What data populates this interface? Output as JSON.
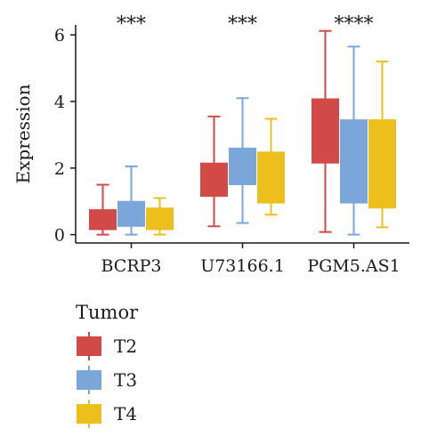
{
  "chart_data": {
    "type": "boxplot",
    "ylabel": "Expression",
    "ylim": [
      -0.25,
      6.3
    ],
    "yticks": [
      0,
      2,
      4,
      6
    ],
    "categories": [
      "BCRP3",
      "U73166.1",
      "PGM5.AS1"
    ],
    "significance": [
      "***",
      "***",
      "****"
    ],
    "legend_title": "Tumor",
    "grid": false,
    "legend_position": "bottom-left",
    "series": [
      {
        "name": "T2",
        "color": "#d24a48",
        "boxes": [
          {
            "min": 0.0,
            "q1": 0.15,
            "median": 0.4,
            "q3": 0.75,
            "max": 1.5
          },
          {
            "min": 0.25,
            "q1": 1.15,
            "median": 1.5,
            "q3": 2.15,
            "max": 3.55
          },
          {
            "min": 0.08,
            "q1": 2.15,
            "median": 3.1,
            "q3": 4.08,
            "max": 6.12
          }
        ]
      },
      {
        "name": "T3",
        "color": "#7ba6d9",
        "boxes": [
          {
            "min": 0.0,
            "q1": 0.25,
            "median": 0.55,
            "q3": 1.0,
            "max": 2.05
          },
          {
            "min": 0.35,
            "q1": 1.5,
            "median": 2.0,
            "q3": 2.6,
            "max": 4.1
          },
          {
            "min": 0.0,
            "q1": 0.95,
            "median": 2.2,
            "q3": 3.45,
            "max": 5.65
          }
        ]
      },
      {
        "name": "T4",
        "color": "#ecbf1c",
        "boxes": [
          {
            "min": 0.0,
            "q1": 0.15,
            "median": 0.5,
            "q3": 0.8,
            "max": 1.1
          },
          {
            "min": 0.6,
            "q1": 0.95,
            "median": 1.75,
            "q3": 2.48,
            "max": 3.48
          },
          {
            "min": 0.22,
            "q1": 0.8,
            "median": 2.1,
            "q3": 3.45,
            "max": 5.2
          }
        ]
      }
    ]
  }
}
